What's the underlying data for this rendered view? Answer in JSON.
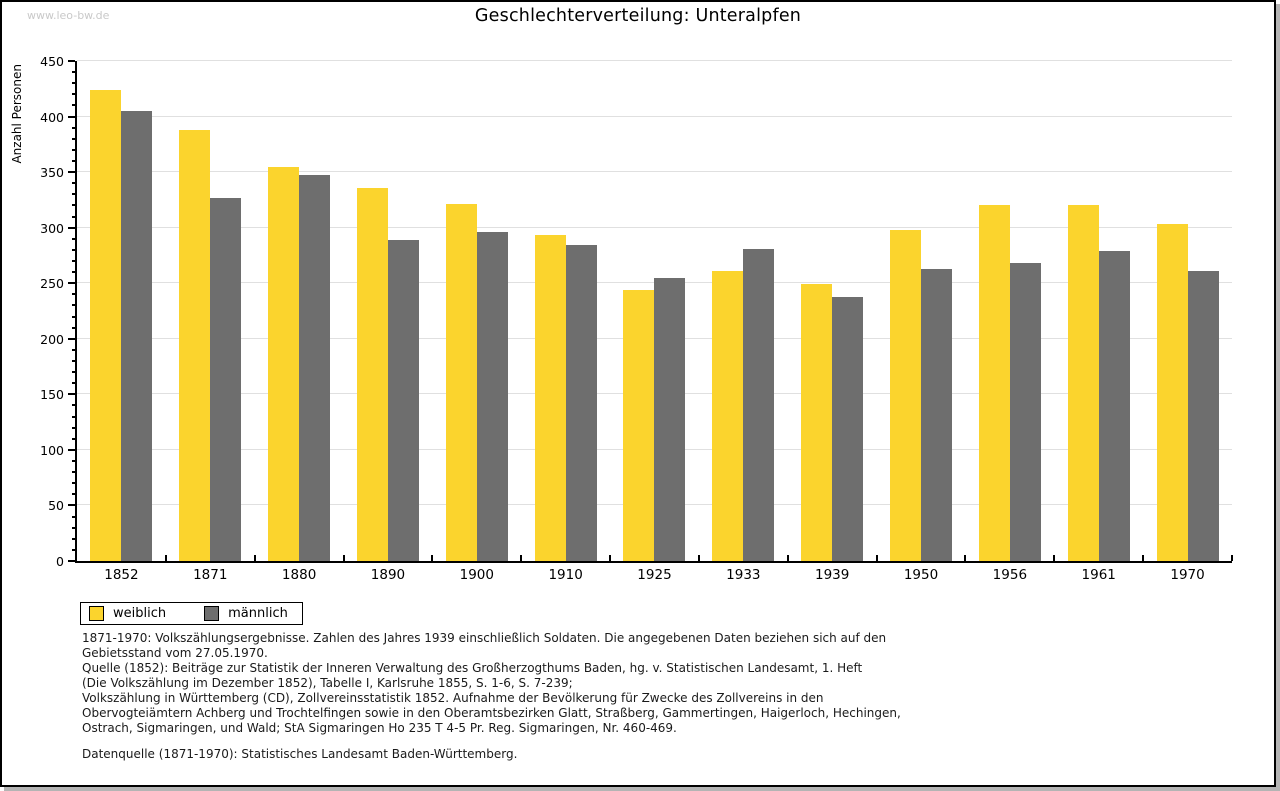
{
  "watermark": "www.leo-bw.de",
  "title": "Geschlechterverteilung: Unteralpfen",
  "chart_data": {
    "type": "bar",
    "title": "Geschlechterverteilung: Unteralpfen",
    "xlabel": "",
    "ylabel": "Anzahl Personen",
    "ylim": [
      0,
      450
    ],
    "ytick_step": 50,
    "minor_tick_step": 10,
    "grid": true,
    "grid_color": "#e0e0e0",
    "legend_position": "bottom-left",
    "categories": [
      "1852",
      "1871",
      "1880",
      "1890",
      "1900",
      "1910",
      "1925",
      "1933",
      "1939",
      "1950",
      "1956",
      "1961",
      "1970"
    ],
    "series": [
      {
        "name": "weiblich",
        "color": "#FBD42D",
        "values": [
          424,
          388,
          355,
          336,
          321,
          293,
          244,
          261,
          249,
          298,
          320,
          320,
          303
        ]
      },
      {
        "name": "männlich",
        "color": "#6E6E6E",
        "values": [
          405,
          327,
          347,
          289,
          296,
          284,
          255,
          281,
          238,
          263,
          268,
          279,
          261
        ]
      }
    ]
  },
  "footnotes": [
    "1871-1970: Volkszählungsergebnisse. Zahlen des Jahres 1939 einschließlich Soldaten. Die angegebenen Daten beziehen sich auf den",
    "Gebietsstand vom 27.05.1970.",
    "Quelle (1852): Beiträge zur Statistik der Inneren Verwaltung des Großherzogthums Baden, hg. v. Statistischen Landesamt, 1. Heft",
    "(Die Volkszählung im Dezember 1852), Tabelle I, Karlsruhe 1855, S. 1-6, S. 7-239;",
    "Volkszählung in Württemberg (CD), Zollvereinsstatistik 1852. Aufnahme der Bevölkerung für Zwecke des Zollvereins in den",
    "Obervogteiämtern Achberg und Trochtelfingen sowie in den Oberamtsbezirken Glatt, Straßberg, Gammertingen, Haigerloch, Hechingen,",
    "Ostrach, Sigmaringen, und Wald; StA Sigmaringen Ho 235 T 4-5 Pr. Reg. Sigmaringen, Nr. 460-469."
  ],
  "datasource": "Datenquelle (1871-1970): Statistisches Landesamt Baden-Württemberg."
}
